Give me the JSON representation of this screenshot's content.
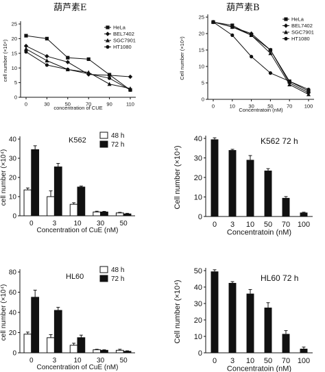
{
  "headers": {
    "left": "葫芦素E",
    "right": "葫芦素B"
  },
  "chart_data": [
    {
      "type": "line",
      "panel": "top-left",
      "xlabel": "concentration of CUE",
      "ylabel": "cell number (×10⁴)",
      "x": [
        "0",
        "30",
        "50",
        "70",
        "90",
        "110"
      ],
      "ylim": [
        0,
        25
      ],
      "yticks": [
        0,
        5,
        10,
        15,
        20,
        25
      ],
      "legend_position": "top-right",
      "series": [
        {
          "name": "HeLa",
          "values": [
            21,
            20,
            13.5,
            13,
            7.7,
            2.5
          ],
          "marker": "square"
        },
        {
          "name": "BEL7402",
          "values": [
            17.5,
            14,
            12,
            7.8,
            7.5,
            7
          ],
          "marker": "diamond"
        },
        {
          "name": "SGC7901",
          "values": [
            16.5,
            12.5,
            9.5,
            8.5,
            4.5,
            3
          ],
          "marker": "triangle"
        },
        {
          "name": "HT1080",
          "values": [
            15.5,
            11,
            9.5,
            8,
            6.5,
            2.5
          ],
          "marker": "circle"
        }
      ]
    },
    {
      "type": "line",
      "panel": "top-right",
      "xlabel": "Concentratoin (nM)",
      "ylabel": "Cell number (×10⁴)",
      "x": [
        "0",
        "10",
        "30",
        "50",
        "70",
        "100"
      ],
      "ylim": [
        0,
        25
      ],
      "yticks": [
        0,
        5,
        10,
        15,
        20,
        25
      ],
      "legend_position": "top-right",
      "series": [
        {
          "name": "HeLa",
          "values": [
            23.5,
            22.5,
            19.5,
            15,
            5.5,
            2.5
          ],
          "marker": "square"
        },
        {
          "name": "BEL7402",
          "values": [
            23.5,
            22,
            20,
            15,
            5,
            2
          ],
          "marker": "diamond"
        },
        {
          "name": "SGC7901",
          "values": [
            23.5,
            22,
            19.5,
            14,
            4.5,
            1.5
          ],
          "marker": "triangle"
        },
        {
          "name": "HT1080",
          "values": [
            23.5,
            19.5,
            13,
            8,
            5.5,
            3
          ],
          "marker": "circle"
        }
      ]
    },
    {
      "type": "bar",
      "panel": "mid-left",
      "inset_label": "K562",
      "xlabel": "Concentration of CuE (nM)",
      "ylabel": "cell number (×10⁴)",
      "categories": [
        "0",
        "3",
        "10",
        "30",
        "50"
      ],
      "ylim": [
        0,
        40
      ],
      "yticks": [
        0,
        10,
        20,
        30,
        40
      ],
      "legend_position": "top-right",
      "series": [
        {
          "name": "48 h",
          "values": [
            13.5,
            10,
            6,
            2,
            1.5
          ],
          "errors": [
            1,
            3,
            0.8,
            0.4,
            0.3
          ],
          "fill": "white"
        },
        {
          "name": "72 h",
          "values": [
            34.5,
            25.5,
            15,
            2,
            1
          ],
          "errors": [
            2,
            1.8,
            0.5,
            0.3,
            0.3
          ],
          "fill": "black"
        }
      ]
    },
    {
      "type": "bar",
      "panel": "mid-right",
      "inset_label": "K562 72 h",
      "xlabel": "Concentratoin (nM)",
      "ylabel": "Cell number (×10⁴)",
      "categories": [
        "0",
        "3",
        "10",
        "50",
        "70",
        "100"
      ],
      "values": [
        39.5,
        34,
        29,
        23.5,
        9.5,
        2
      ],
      "errors": [
        0.8,
        0.4,
        2.2,
        1,
        0.7,
        0.2
      ],
      "ylim": [
        0,
        40
      ],
      "yticks": [
        0,
        10,
        20,
        30,
        40
      ]
    },
    {
      "type": "bar",
      "panel": "bottom-left",
      "inset_label": "HL60",
      "xlabel": "Concentration of CuE (nM)",
      "ylabel": "cell number (×10⁴)",
      "categories": [
        "0",
        "3",
        "10",
        "30",
        "50"
      ],
      "ylim": [
        0,
        80
      ],
      "yticks": [
        0,
        20,
        40,
        60,
        80
      ],
      "legend_position": "top-right",
      "series": [
        {
          "name": "48 h",
          "values": [
            18.5,
            15,
            7.5,
            3,
            2.5
          ],
          "errors": [
            2,
            3,
            2,
            0.5,
            1
          ],
          "fill": "white"
        },
        {
          "name": "72 h",
          "values": [
            55,
            42,
            15,
            2.5,
            1.5
          ],
          "errors": [
            7,
            3,
            2.5,
            0.5,
            0.5
          ],
          "fill": "black"
        }
      ]
    },
    {
      "type": "bar",
      "panel": "bottom-right",
      "inset_label": "HL60 72 h",
      "xlabel": "Concentratoin (nM)",
      "ylabel": "Cell number (×10⁴)",
      "categories": [
        "0",
        "3",
        "10",
        "50",
        "70",
        "100"
      ],
      "values": [
        49.5,
        42.5,
        36,
        27.5,
        11.5,
        2.5
      ],
      "errors": [
        1,
        0.8,
        2.5,
        3,
        2,
        1
      ],
      "ylim": [
        0,
        50
      ],
      "yticks": [
        0,
        10,
        20,
        30,
        40,
        50
      ]
    }
  ]
}
